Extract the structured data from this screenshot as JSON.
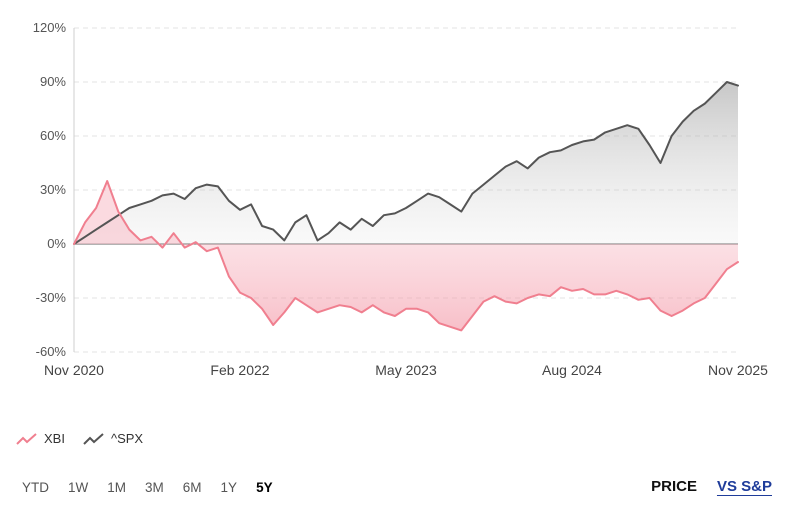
{
  "chart_data": {
    "type": "area",
    "x_ticks": [
      "Nov 2020",
      "Feb 2022",
      "May 2023",
      "Aug 2024",
      "Nov 2025"
    ],
    "y_ticks": [
      "120%",
      "90%",
      "60%",
      "30%",
      "0%",
      "-30%",
      "-60%"
    ],
    "ylim": [
      -60,
      120
    ],
    "xlim": [
      "2020-11",
      "2025-11"
    ],
    "grid": true,
    "baseline": 0,
    "series": [
      {
        "name": "XBI",
        "color": "#f07f8f",
        "x": [
          "2020-11",
          "2020-12",
          "2021-01",
          "2021-02",
          "2021-03",
          "2021-04",
          "2021-05",
          "2021-06",
          "2021-07",
          "2021-08",
          "2021-09",
          "2021-10",
          "2021-11",
          "2021-12",
          "2022-01",
          "2022-02",
          "2022-03",
          "2022-04",
          "2022-05",
          "2022-06",
          "2022-07",
          "2022-08",
          "2022-09",
          "2022-10",
          "2022-11",
          "2022-12",
          "2023-01",
          "2023-02",
          "2023-03",
          "2023-04",
          "2023-05",
          "2023-06",
          "2023-07",
          "2023-08",
          "2023-09",
          "2023-10",
          "2023-11",
          "2023-12",
          "2024-01",
          "2024-02",
          "2024-03",
          "2024-04",
          "2024-05",
          "2024-06",
          "2024-07",
          "2024-08",
          "2024-09",
          "2024-10",
          "2024-11",
          "2024-12",
          "2025-01",
          "2025-02",
          "2025-03",
          "2025-04",
          "2025-05",
          "2025-06",
          "2025-07",
          "2025-08",
          "2025-09",
          "2025-10",
          "2025-11"
        ],
        "values": [
          0,
          12,
          20,
          35,
          18,
          8,
          2,
          4,
          -2,
          6,
          -2,
          1,
          -4,
          -2,
          -18,
          -27,
          -30,
          -36,
          -45,
          -38,
          -30,
          -34,
          -38,
          -36,
          -34,
          -35,
          -38,
          -34,
          -38,
          -40,
          -36,
          -36,
          -38,
          -44,
          -46,
          -48,
          -40,
          -32,
          -29,
          -32,
          -33,
          -30,
          -28,
          -29,
          -24,
          -26,
          -25,
          -28,
          -28,
          -26,
          -28,
          -31,
          -30,
          -37,
          -40,
          -37,
          -33,
          -30,
          -22,
          -14,
          -10
        ]
      },
      {
        "name": "^SPX",
        "color": "#555555",
        "x": [
          "2020-11",
          "2020-12",
          "2021-01",
          "2021-02",
          "2021-03",
          "2021-04",
          "2021-05",
          "2021-06",
          "2021-07",
          "2021-08",
          "2021-09",
          "2021-10",
          "2021-11",
          "2021-12",
          "2022-01",
          "2022-02",
          "2022-03",
          "2022-04",
          "2022-05",
          "2022-06",
          "2022-07",
          "2022-08",
          "2022-09",
          "2022-10",
          "2022-11",
          "2022-12",
          "2023-01",
          "2023-02",
          "2023-03",
          "2023-04",
          "2023-05",
          "2023-06",
          "2023-07",
          "2023-08",
          "2023-09",
          "2023-10",
          "2023-11",
          "2023-12",
          "2024-01",
          "2024-02",
          "2024-03",
          "2024-04",
          "2024-05",
          "2024-06",
          "2024-07",
          "2024-08",
          "2024-09",
          "2024-10",
          "2024-11",
          "2024-12",
          "2025-01",
          "2025-02",
          "2025-03",
          "2025-04",
          "2025-05",
          "2025-06",
          "2025-07",
          "2025-08",
          "2025-09",
          "2025-10",
          "2025-11"
        ],
        "values": [
          0,
          4,
          8,
          12,
          16,
          20,
          22,
          24,
          27,
          28,
          25,
          31,
          33,
          32,
          24,
          19,
          22,
          10,
          8,
          2,
          12,
          16,
          2,
          6,
          12,
          8,
          14,
          10,
          16,
          17,
          20,
          24,
          28,
          26,
          22,
          18,
          28,
          33,
          38,
          43,
          46,
          42,
          48,
          51,
          52,
          55,
          57,
          58,
          62,
          64,
          66,
          64,
          55,
          45,
          60,
          68,
          74,
          78,
          84,
          90,
          88
        ]
      }
    ]
  },
  "legend": [
    {
      "label": "XBI",
      "color": "#f07f8f"
    },
    {
      "label": "^SPX",
      "color": "#555555"
    }
  ],
  "ranges": [
    {
      "label": "YTD",
      "active": false
    },
    {
      "label": "1W",
      "active": false
    },
    {
      "label": "1M",
      "active": false
    },
    {
      "label": "3M",
      "active": false
    },
    {
      "label": "6M",
      "active": false
    },
    {
      "label": "1Y",
      "active": false
    },
    {
      "label": "5Y",
      "active": true
    }
  ],
  "modes": [
    {
      "label": "PRICE",
      "active": false
    },
    {
      "label": "VS S&P",
      "active": true
    }
  ]
}
